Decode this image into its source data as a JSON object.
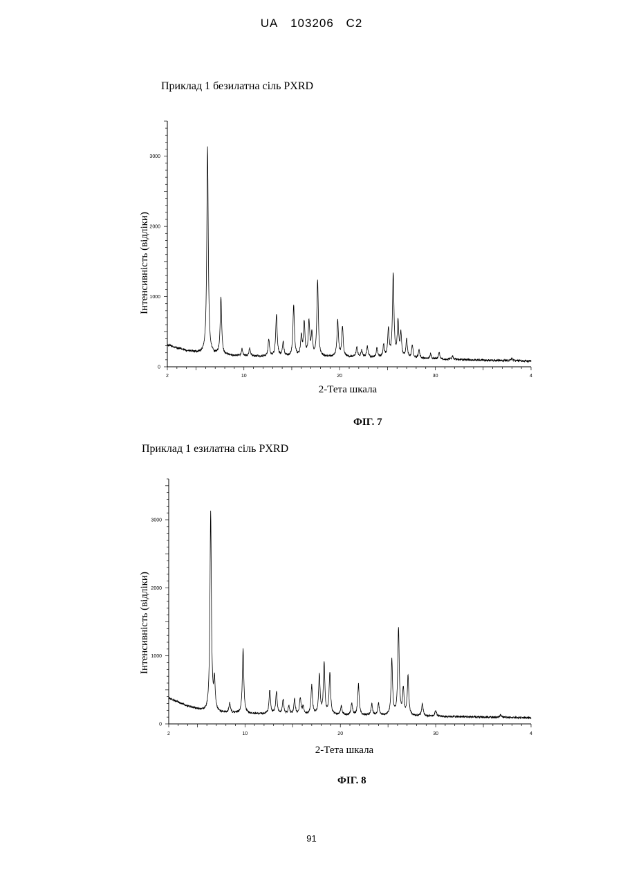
{
  "header": {
    "country": "UA",
    "number": "103206",
    "kind": "C2"
  },
  "page_number": "91",
  "figures": [
    {
      "title": "Приклад 1 безилатна сіль PXRD",
      "caption": "ФІГ. 7"
    },
    {
      "title": "Приклад 1 езилатна сіль PXRD",
      "caption": "ФІГ. 8"
    }
  ],
  "chart_data": [
    {
      "type": "line",
      "title": "Приклад 1 безилатна сіль PXRD",
      "xlabel": "2-Тета шкала",
      "ylabel": "Інтенсивність (відліки)",
      "xlim": [
        2,
        40
      ],
      "ylim": [
        0,
        3500
      ],
      "x_ticks": [
        "2",
        "10",
        "20",
        "30",
        "4"
      ],
      "y_ticks": [
        "0",
        "1000",
        "2000",
        "3000"
      ],
      "grid": false,
      "baseline": {
        "x": [
          2,
          4,
          6,
          10,
          20,
          30,
          40
        ],
        "y": [
          310,
          230,
          180,
          150,
          140,
          110,
          80
        ]
      },
      "peaks": [
        {
          "x": 6.2,
          "y": 3130
        },
        {
          "x": 7.6,
          "y": 980
        },
        {
          "x": 9.8,
          "y": 250
        },
        {
          "x": 10.6,
          "y": 260
        },
        {
          "x": 12.6,
          "y": 380
        },
        {
          "x": 13.4,
          "y": 740
        },
        {
          "x": 14.1,
          "y": 350
        },
        {
          "x": 15.2,
          "y": 870
        },
        {
          "x": 16.0,
          "y": 420
        },
        {
          "x": 16.3,
          "y": 620
        },
        {
          "x": 16.8,
          "y": 630
        },
        {
          "x": 17.1,
          "y": 450
        },
        {
          "x": 17.7,
          "y": 1220
        },
        {
          "x": 19.8,
          "y": 660
        },
        {
          "x": 20.3,
          "y": 560
        },
        {
          "x": 21.8,
          "y": 270
        },
        {
          "x": 22.3,
          "y": 230
        },
        {
          "x": 22.9,
          "y": 290
        },
        {
          "x": 23.9,
          "y": 260
        },
        {
          "x": 24.6,
          "y": 300
        },
        {
          "x": 25.1,
          "y": 520
        },
        {
          "x": 25.6,
          "y": 1320
        },
        {
          "x": 26.1,
          "y": 620
        },
        {
          "x": 26.4,
          "y": 450
        },
        {
          "x": 27.0,
          "y": 380
        },
        {
          "x": 27.6,
          "y": 300
        },
        {
          "x": 28.3,
          "y": 230
        },
        {
          "x": 29.5,
          "y": 180
        },
        {
          "x": 30.4,
          "y": 200
        },
        {
          "x": 31.8,
          "y": 150
        },
        {
          "x": 38.0,
          "y": 120
        }
      ]
    },
    {
      "type": "line",
      "title": "Приклад 1 езилатна сіль PXRD",
      "xlabel": "2-Тета шкала",
      "ylabel": "Інтенсивність (відліки)",
      "xlim": [
        2,
        40
      ],
      "ylim": [
        0,
        3600
      ],
      "x_ticks": [
        "2",
        "10",
        "20",
        "30",
        "4"
      ],
      "y_ticks": [
        "0",
        "1000",
        "2000",
        "3000"
      ],
      "grid": false,
      "baseline": {
        "x": [
          2,
          4,
          6,
          10,
          20,
          30,
          40
        ],
        "y": [
          380,
          260,
          170,
          150,
          130,
          110,
          90
        ]
      },
      "peaks": [
        {
          "x": 6.4,
          "y": 3100
        },
        {
          "x": 6.8,
          "y": 600
        },
        {
          "x": 8.4,
          "y": 300
        },
        {
          "x": 9.8,
          "y": 1100
        },
        {
          "x": 12.6,
          "y": 490
        },
        {
          "x": 13.3,
          "y": 470
        },
        {
          "x": 14.0,
          "y": 350
        },
        {
          "x": 14.6,
          "y": 250
        },
        {
          "x": 15.2,
          "y": 350
        },
        {
          "x": 15.8,
          "y": 380
        },
        {
          "x": 16.1,
          "y": 250
        },
        {
          "x": 17.0,
          "y": 560
        },
        {
          "x": 17.8,
          "y": 720
        },
        {
          "x": 18.3,
          "y": 880
        },
        {
          "x": 18.9,
          "y": 750
        },
        {
          "x": 20.1,
          "y": 260
        },
        {
          "x": 21.2,
          "y": 300
        },
        {
          "x": 21.9,
          "y": 580
        },
        {
          "x": 23.3,
          "y": 290
        },
        {
          "x": 24.0,
          "y": 300
        },
        {
          "x": 25.4,
          "y": 930
        },
        {
          "x": 26.1,
          "y": 1400
        },
        {
          "x": 26.6,
          "y": 500
        },
        {
          "x": 27.1,
          "y": 700
        },
        {
          "x": 28.6,
          "y": 300
        },
        {
          "x": 30.0,
          "y": 200
        },
        {
          "x": 36.8,
          "y": 130
        }
      ]
    }
  ]
}
